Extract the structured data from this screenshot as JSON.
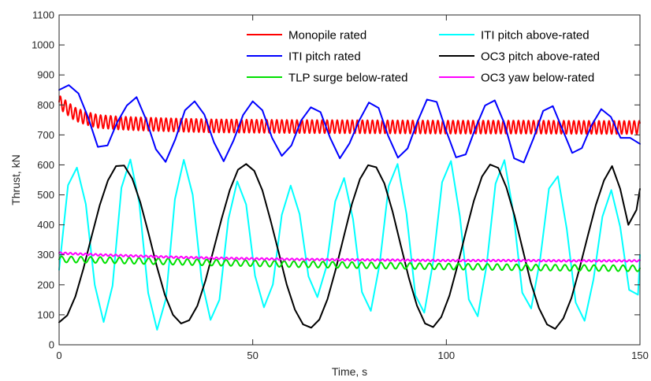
{
  "chart_data": {
    "type": "line",
    "xlabel": "Time, s",
    "ylabel": "Thrust, kN",
    "xlim": [
      0,
      150
    ],
    "ylim": [
      0,
      1100
    ],
    "xticks": [
      0,
      50,
      100,
      150
    ],
    "yticks": [
      0,
      100,
      200,
      300,
      400,
      500,
      600,
      700,
      800,
      900,
      1000,
      1100
    ],
    "grid": false,
    "legend_position": "top-right",
    "legend_columns": 2,
    "series": [
      {
        "name": "Monopile rated",
        "color": "#ff0000",
        "x": [
          0,
          2,
          4,
          6,
          8,
          10,
          15,
          20,
          30,
          40,
          60,
          80,
          100,
          120,
          140,
          150
        ],
        "y": [
          810,
          790,
          770,
          760,
          752,
          745,
          740,
          737,
          733,
          730,
          728,
          727,
          726,
          726,
          725,
          725
        ],
        "oscillation": {
          "period_s": 1.3,
          "amplitude_kN": 22
        }
      },
      {
        "name": "ITI pitch above-rated",
        "color": "#00ffff",
        "x": [
          0,
          2.3,
          4.6,
          6.9,
          9.2,
          11.5,
          13.8,
          16.1,
          18.4,
          20.7,
          23.0,
          25.3,
          27.6,
          29.9,
          32.2,
          34.5,
          36.8,
          39.1,
          41.4,
          43.7,
          46.0,
          48.3,
          50.6,
          52.9,
          55.2,
          57.5,
          59.8,
          62.1,
          64.4,
          66.7,
          69.0,
          71.3,
          73.6,
          75.9,
          78.2,
          80.5,
          82.8,
          85.1,
          87.4,
          89.7,
          92.0,
          94.3,
          96.6,
          98.9,
          101.2,
          103.5,
          105.8,
          108.1,
          110.4,
          112.7,
          115.0,
          117.3,
          119.6,
          121.9,
          124.2,
          126.5,
          128.8,
          131.1,
          133.4,
          135.7,
          138.0,
          140.3,
          142.6,
          144.9,
          147.2,
          149.5,
          150
        ],
        "y": [
          250,
          532,
          591,
          469,
          200,
          76,
          197,
          524,
          618,
          473,
          173,
          50,
          154,
          485,
          617,
          500,
          215,
          83,
          150,
          418,
          545,
          468,
          230,
          125,
          201,
          433,
          531,
          436,
          228,
          159,
          259,
          478,
          556,
          419,
          176,
          113,
          271,
          529,
          603,
          437,
          165,
          107,
          277,
          542,
          613,
          428,
          151,
          95,
          265,
          537,
          616,
          441,
          174,
          121,
          283,
          521,
          562,
          386,
          141,
          80,
          218,
          427,
          516,
          393,
          183,
          167,
          300
        ]
      },
      {
        "name": "ITI pitch rated",
        "color": "#0000ff",
        "x": [
          0,
          2.5,
          5.0,
          7.5,
          10.0,
          12.5,
          15.0,
          17.5,
          20.0,
          22.5,
          25.0,
          27.5,
          30.0,
          32.5,
          35.0,
          37.5,
          40.0,
          42.5,
          45.0,
          47.5,
          50.0,
          52.5,
          55.0,
          57.5,
          60.0,
          62.5,
          65.0,
          67.5,
          70.0,
          72.5,
          75.0,
          77.5,
          80.0,
          82.5,
          85.0,
          87.5,
          90.0,
          92.5,
          95.0,
          97.5,
          100.0,
          102.5,
          105.0,
          107.5,
          110.0,
          112.5,
          115.0,
          117.5,
          120.0,
          122.5,
          125.0,
          127.5,
          130.0,
          132.5,
          135.0,
          137.5,
          140.0,
          142.5,
          145.0,
          147.5,
          150
        ],
        "y": [
          850,
          866,
          838,
          758,
          660,
          665,
          742,
          798,
          826,
          750,
          652,
          610,
          685,
          782,
          812,
          768,
          675,
          612,
          680,
          766,
          812,
          782,
          690,
          630,
          665,
          748,
          792,
          776,
          690,
          622,
          672,
          748,
          808,
          790,
          696,
          624,
          655,
          743,
          818,
          810,
          712,
          625,
          635,
          722,
          798,
          815,
          738,
          622,
          608,
          688,
          780,
          796,
          718,
          640,
          656,
          732,
          786,
          760,
          690,
          690,
          670
        ]
      },
      {
        "name": "OC3 pitch above-rated",
        "color": "#000000",
        "x": [
          0,
          2.1,
          4.2,
          6.3,
          8.4,
          10.5,
          12.6,
          14.7,
          16.8,
          18.9,
          21.0,
          23.1,
          25.2,
          27.3,
          29.4,
          31.5,
          33.6,
          35.7,
          37.8,
          39.9,
          42.0,
          44.1,
          46.2,
          48.3,
          50.4,
          52.5,
          54.6,
          56.7,
          58.8,
          60.9,
          63.0,
          65.1,
          67.2,
          69.3,
          71.4,
          73.5,
          75.6,
          77.7,
          79.8,
          81.9,
          84.0,
          86.1,
          88.2,
          90.3,
          92.4,
          94.5,
          96.6,
          98.7,
          100.8,
          102.9,
          105.0,
          107.1,
          109.2,
          111.3,
          113.4,
          115.5,
          117.6,
          119.7,
          121.8,
          123.9,
          126.0,
          128.1,
          130.2,
          132.3,
          134.4,
          136.5,
          138.6,
          140.7,
          142.8,
          144.9,
          147.0,
          149.1,
          150
        ],
        "y": [
          75,
          98,
          161,
          255,
          362,
          466,
          548,
          596,
          598,
          554,
          474,
          371,
          263,
          167,
          100,
          71,
          82,
          130,
          214,
          318,
          422,
          517,
          584,
          603,
          580,
          515,
          415,
          308,
          200,
          117,
          68,
          57,
          84,
          152,
          250,
          360,
          469,
          553,
          599,
          592,
          538,
          445,
          333,
          224,
          131,
          71,
          59,
          93,
          164,
          265,
          375,
          480,
          561,
          601,
          590,
          525,
          431,
          319,
          208,
          123,
          68,
          53,
          88,
          156,
          255,
          362,
          466,
          548,
          596,
          520,
          400,
          450,
          520
        ]
      },
      {
        "name": "TLP surge below-rated",
        "color": "#00e000",
        "x": [
          0,
          10,
          20,
          30,
          40,
          50,
          60,
          70,
          80,
          90,
          100,
          110,
          120,
          130,
          140,
          150
        ],
        "y": [
          285,
          283,
          280,
          277,
          274,
          272,
          269,
          267,
          265,
          263,
          261,
          260,
          258,
          257,
          256,
          255
        ],
        "oscillation": {
          "period_s": 2.5,
          "amplitude_kN": 10
        }
      },
      {
        "name": "OC3 yaw below-rated",
        "color": "#ff00ff",
        "x": [
          0,
          10,
          20,
          30,
          40,
          50,
          60,
          70,
          80,
          90,
          100,
          110,
          120,
          130,
          140,
          150
        ],
        "y": [
          306,
          300,
          296,
          292,
          289,
          287,
          285,
          284,
          283,
          282,
          281,
          281,
          281,
          280,
          280,
          280
        ],
        "oscillation": {
          "period_s": 1.3,
          "amplitude_kN": 3
        }
      }
    ]
  }
}
